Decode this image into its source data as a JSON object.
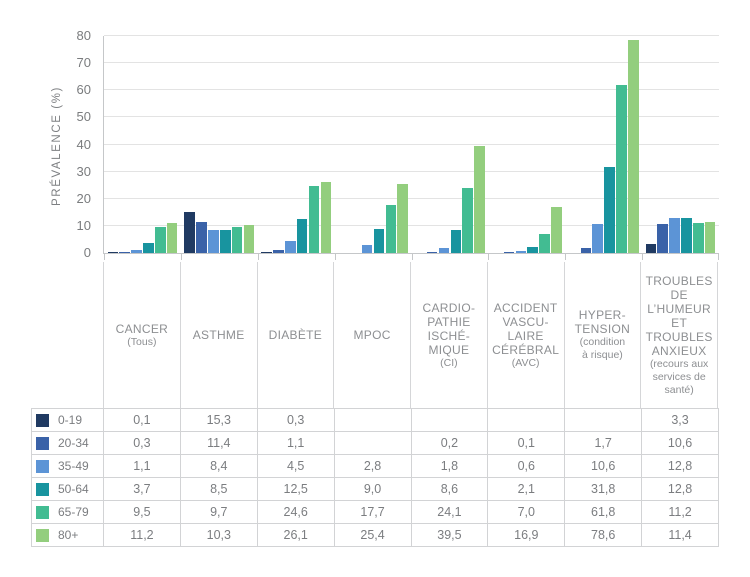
{
  "chart_data": {
    "type": "bar",
    "title": "",
    "xlabel": "",
    "ylabel": "PRÉVALENCE  (%)",
    "ylim": [
      0,
      80
    ],
    "ytick_step": 10,
    "grid": "horizontal",
    "legend_position": "left column of data table below chart",
    "decimal_separator": ",",
    "categories": [
      {
        "name": "CANCER (Tous)",
        "label_lines": [
          "CANCER"
        ],
        "sub_lines": [
          "(Tous)"
        ]
      },
      {
        "name": "ASTHME",
        "label_lines": [
          "ASTHME"
        ],
        "sub_lines": []
      },
      {
        "name": "DIABÈTE",
        "label_lines": [
          "DIABÈTE"
        ],
        "sub_lines": []
      },
      {
        "name": "MPOC",
        "label_lines": [
          "MPOC"
        ],
        "sub_lines": []
      },
      {
        "name": "CARDIOPATHIE ISCHÉMIQUE (CI)",
        "label_lines": [
          "CARDIO-",
          "PATHIE",
          "ISCHÉ-",
          "MIQUE"
        ],
        "sub_lines": [
          "(CI)"
        ]
      },
      {
        "name": "ACCIDENT VASCULAIRE CÉRÉBRAL (AVC)",
        "label_lines": [
          "ACCIDENT",
          "VASCU-",
          "LAIRE",
          "CÉRÉBRAL"
        ],
        "sub_lines": [
          "(AVC)"
        ]
      },
      {
        "name": "HYPERTENSION (condition à risque)",
        "label_lines": [
          "HYPER-",
          "TENSION"
        ],
        "sub_lines": [
          "(condition",
          "à risque)"
        ]
      },
      {
        "name": "TROUBLES DE L’HUMEUR ET TROUBLES ANXIEUX (recours aux services de santé)",
        "label_lines": [
          "TROUBLES",
          "DE",
          "L’HUMEUR",
          "ET",
          "TROUBLES",
          "ANXIEUX"
        ],
        "sub_lines": [
          "(recours aux",
          "services de",
          "santé)"
        ]
      }
    ],
    "series": [
      {
        "name": "0-19",
        "color": "#203a62",
        "values": [
          0.1,
          15.3,
          0.3,
          null,
          null,
          null,
          null,
          3.3
        ]
      },
      {
        "name": "20-34",
        "color": "#3a62a8",
        "values": [
          0.3,
          11.4,
          1.1,
          null,
          0.2,
          0.1,
          1.7,
          10.6
        ]
      },
      {
        "name": "35-49",
        "color": "#5c94d6",
        "values": [
          1.1,
          8.4,
          4.5,
          2.8,
          1.8,
          0.6,
          10.6,
          12.8
        ]
      },
      {
        "name": "50-64",
        "color": "#18949f",
        "values": [
          3.7,
          8.5,
          12.5,
          9.0,
          8.6,
          2.1,
          31.8,
          12.8
        ]
      },
      {
        "name": "65-79",
        "color": "#42bc92",
        "values": [
          9.5,
          9.7,
          24.6,
          17.7,
          24.1,
          7.0,
          61.8,
          11.2
        ]
      },
      {
        "name": "80+",
        "color": "#93ce7e",
        "values": [
          11.2,
          10.3,
          26.1,
          25.4,
          39.5,
          16.9,
          78.6,
          11.4
        ]
      }
    ]
  }
}
